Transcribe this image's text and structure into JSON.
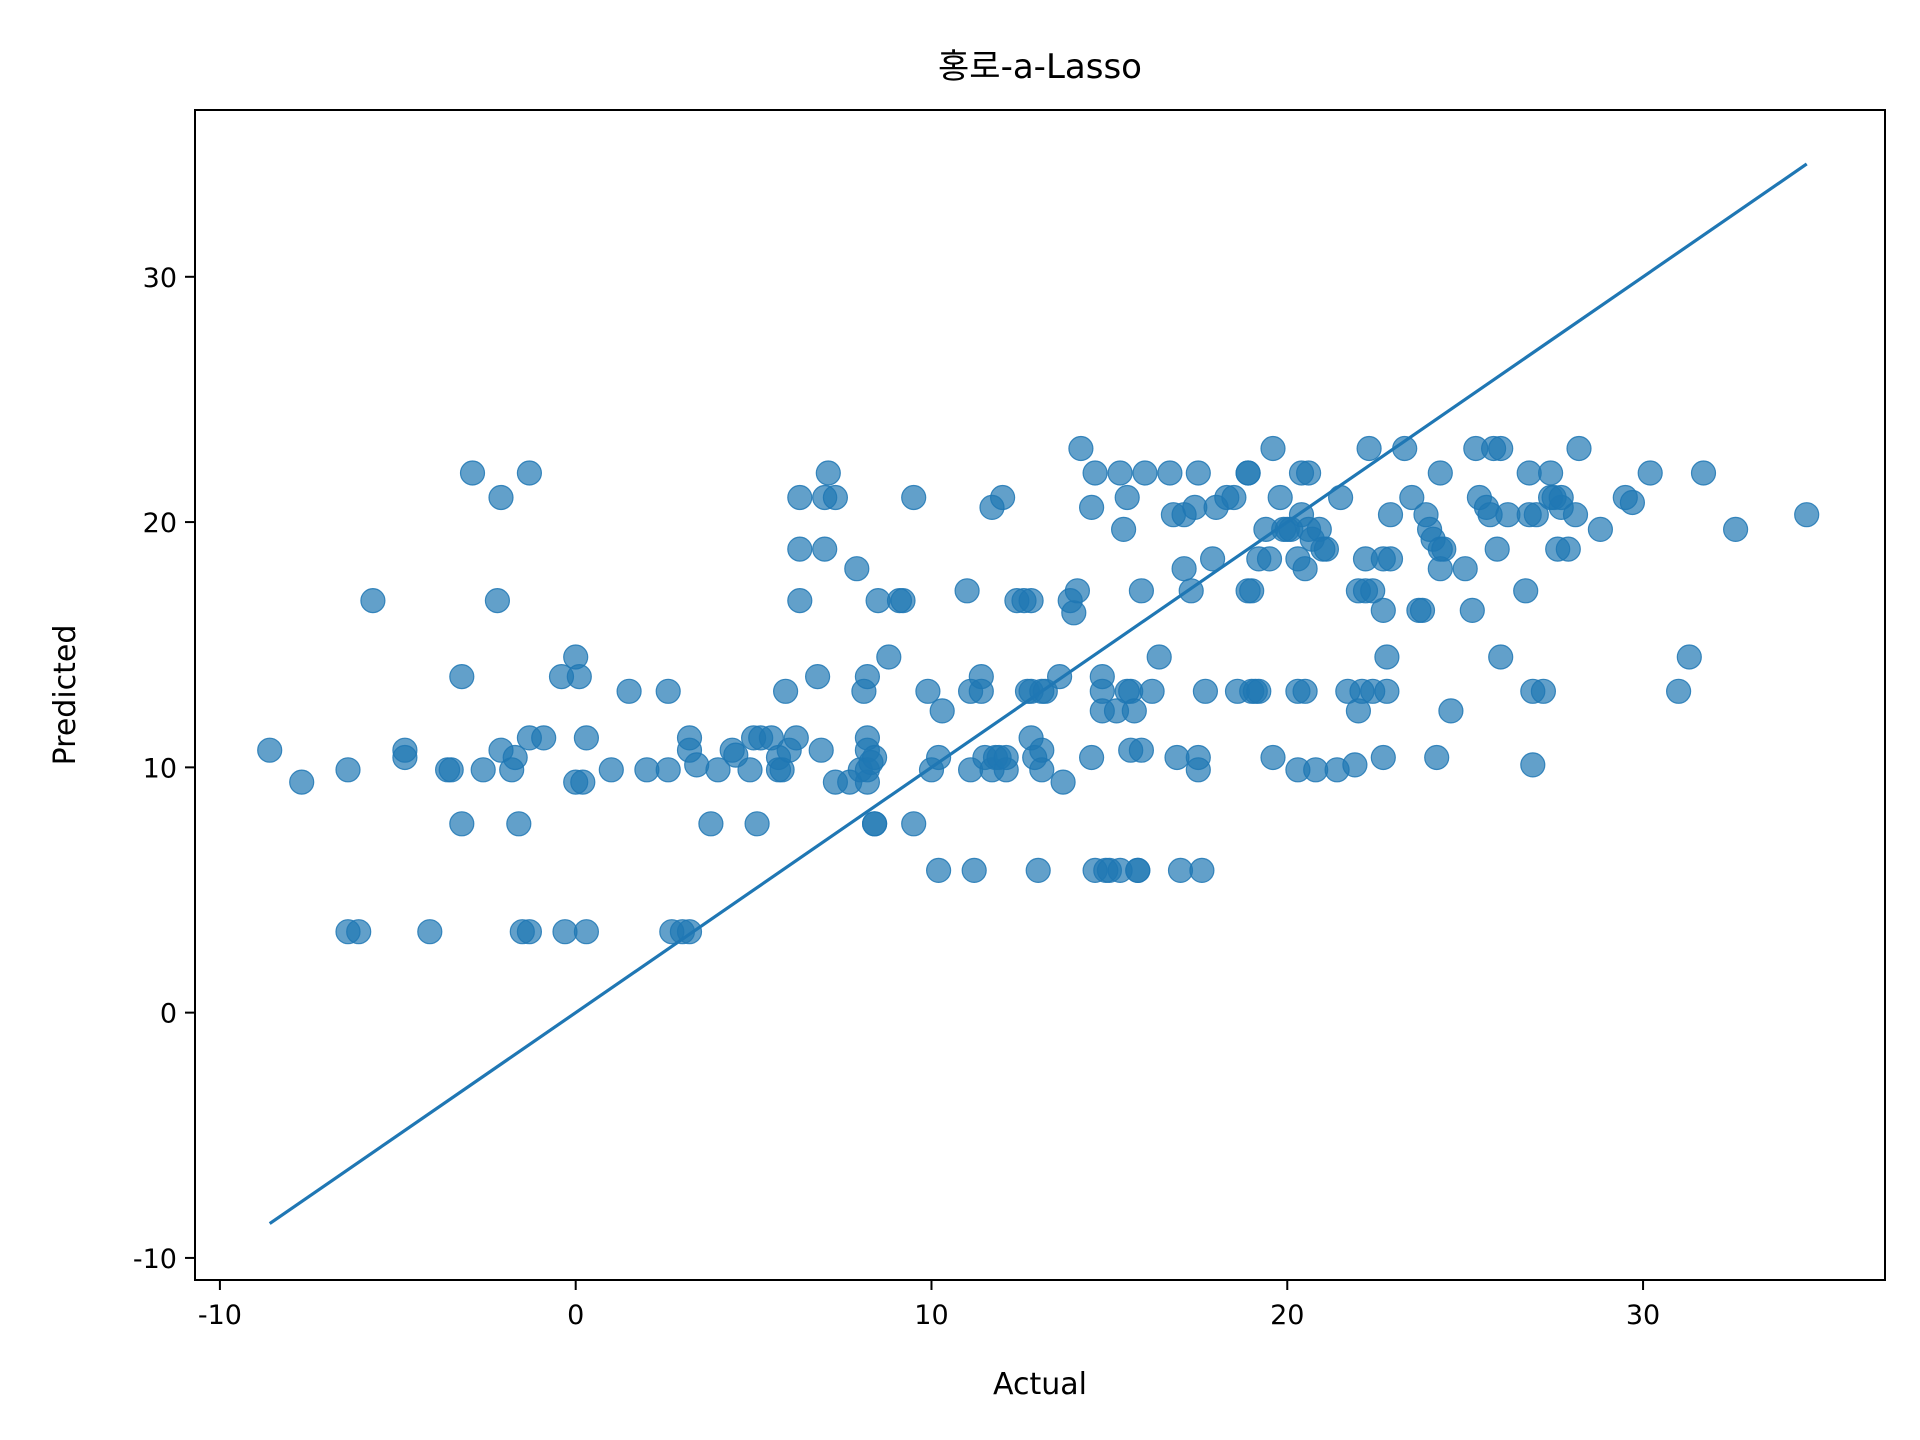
{
  "chart_data": {
    "type": "scatter",
    "title": "홍로-a-Lasso",
    "xlabel": "Actual",
    "ylabel": "Predicted",
    "xlim": [
      -10.7,
      36.8
    ],
    "ylim": [
      -10.9,
      36.8
    ],
    "xticks": [
      -10,
      0,
      10,
      20,
      30
    ],
    "yticks": [
      -10,
      0,
      10,
      20,
      30
    ],
    "xtick_labels": [
      "-10",
      "0",
      "10",
      "20",
      "30"
    ],
    "ytick_labels": [
      "-10",
      "0",
      "10",
      "20",
      "30"
    ],
    "grid": false,
    "legend": "none",
    "point_color": "#1f77b4",
    "point_alpha": 0.7,
    "line_color": "#1f77b4",
    "reference_line": {
      "x": [
        -8.6,
        34.6
      ],
      "y": [
        -8.6,
        34.6
      ]
    },
    "points": [
      [
        -8.6,
        10.7
      ],
      [
        -7.7,
        9.4
      ],
      [
        -6.4,
        9.9
      ],
      [
        -6.4,
        3.3
      ],
      [
        -6.1,
        3.3
      ],
      [
        -5.7,
        16.8
      ],
      [
        -4.8,
        10.7
      ],
      [
        -4.8,
        10.4
      ],
      [
        -4.1,
        3.3
      ],
      [
        -3.6,
        9.9
      ],
      [
        -3.5,
        9.9
      ],
      [
        -3.2,
        7.7
      ],
      [
        -3.2,
        13.7
      ],
      [
        -2.9,
        22.0
      ],
      [
        -2.6,
        9.9
      ],
      [
        -2.2,
        16.8
      ],
      [
        -2.1,
        21.0
      ],
      [
        -2.1,
        10.7
      ],
      [
        -1.8,
        9.9
      ],
      [
        -1.7,
        10.4
      ],
      [
        -1.6,
        7.7
      ],
      [
        -1.5,
        3.3
      ],
      [
        -1.3,
        3.3
      ],
      [
        -1.3,
        11.2
      ],
      [
        -1.3,
        22.0
      ],
      [
        -0.9,
        11.2
      ],
      [
        -0.4,
        13.7
      ],
      [
        -0.3,
        3.3
      ],
      [
        0.0,
        14.5
      ],
      [
        0.0,
        9.4
      ],
      [
        0.1,
        13.7
      ],
      [
        0.2,
        9.4
      ],
      [
        0.3,
        3.3
      ],
      [
        0.3,
        11.2
      ],
      [
        1.0,
        9.9
      ],
      [
        1.5,
        13.1
      ],
      [
        2.0,
        9.9
      ],
      [
        2.6,
        9.9
      ],
      [
        2.6,
        13.1
      ],
      [
        2.7,
        3.3
      ],
      [
        3.0,
        3.3
      ],
      [
        3.2,
        3.3
      ],
      [
        3.2,
        11.2
      ],
      [
        3.2,
        10.7
      ],
      [
        3.4,
        10.1
      ],
      [
        3.8,
        7.7
      ],
      [
        4.0,
        9.9
      ],
      [
        4.4,
        10.7
      ],
      [
        4.5,
        10.5
      ],
      [
        4.9,
        9.9
      ],
      [
        5.0,
        11.2
      ],
      [
        5.1,
        7.7
      ],
      [
        5.2,
        11.2
      ],
      [
        5.5,
        11.2
      ],
      [
        5.7,
        10.4
      ],
      [
        5.7,
        9.9
      ],
      [
        5.8,
        9.9
      ],
      [
        5.9,
        13.1
      ],
      [
        6.0,
        10.7
      ],
      [
        6.2,
        11.2
      ],
      [
        6.3,
        16.8
      ],
      [
        6.3,
        18.9
      ],
      [
        6.3,
        21.0
      ],
      [
        6.8,
        13.7
      ],
      [
        6.9,
        10.7
      ],
      [
        7.0,
        18.9
      ],
      [
        7.0,
        21.0
      ],
      [
        7.1,
        22.0
      ],
      [
        7.3,
        21.0
      ],
      [
        7.3,
        9.4
      ],
      [
        7.7,
        9.4
      ],
      [
        7.9,
        18.1
      ],
      [
        8.0,
        9.9
      ],
      [
        8.1,
        13.1
      ],
      [
        8.2,
        13.7
      ],
      [
        8.2,
        11.2
      ],
      [
        8.2,
        10.7
      ],
      [
        8.2,
        9.4
      ],
      [
        8.2,
        9.9
      ],
      [
        8.3,
        10.2
      ],
      [
        8.4,
        7.7
      ],
      [
        8.4,
        10.4
      ],
      [
        8.4,
        7.7
      ],
      [
        8.5,
        16.8
      ],
      [
        8.8,
        14.5
      ],
      [
        9.1,
        16.8
      ],
      [
        9.2,
        16.8
      ],
      [
        9.5,
        21.0
      ],
      [
        9.5,
        7.7
      ],
      [
        9.9,
        13.1
      ],
      [
        10.0,
        9.9
      ],
      [
        10.2,
        10.4
      ],
      [
        10.2,
        5.8
      ],
      [
        10.3,
        12.3
      ],
      [
        11.0,
        17.2
      ],
      [
        11.1,
        13.1
      ],
      [
        11.1,
        9.9
      ],
      [
        11.2,
        5.8
      ],
      [
        11.4,
        13.7
      ],
      [
        11.4,
        13.1
      ],
      [
        11.5,
        10.4
      ],
      [
        11.7,
        20.6
      ],
      [
        11.7,
        9.9
      ],
      [
        11.8,
        10.4
      ],
      [
        11.9,
        10.4
      ],
      [
        12.0,
        21.0
      ],
      [
        12.1,
        9.9
      ],
      [
        12.1,
        10.4
      ],
      [
        12.4,
        16.8
      ],
      [
        12.6,
        16.8
      ],
      [
        12.7,
        13.1
      ],
      [
        12.8,
        16.8
      ],
      [
        12.8,
        11.2
      ],
      [
        12.8,
        13.1
      ],
      [
        12.9,
        10.4
      ],
      [
        13.0,
        5.8
      ],
      [
        13.1,
        13.1
      ],
      [
        13.1,
        9.9
      ],
      [
        13.1,
        10.7
      ],
      [
        13.2,
        13.1
      ],
      [
        13.6,
        13.7
      ],
      [
        13.7,
        9.4
      ],
      [
        13.9,
        16.8
      ],
      [
        14.0,
        16.3
      ],
      [
        14.1,
        17.2
      ],
      [
        14.2,
        23.0
      ],
      [
        14.5,
        20.6
      ],
      [
        14.5,
        10.4
      ],
      [
        14.6,
        22.0
      ],
      [
        14.6,
        5.8
      ],
      [
        14.8,
        13.7
      ],
      [
        14.8,
        13.1
      ],
      [
        14.8,
        12.3
      ],
      [
        14.9,
        5.8
      ],
      [
        15.0,
        5.8
      ],
      [
        15.2,
        12.3
      ],
      [
        15.3,
        5.8
      ],
      [
        15.3,
        22.0
      ],
      [
        15.4,
        19.7
      ],
      [
        15.5,
        13.1
      ],
      [
        15.5,
        21.0
      ],
      [
        15.6,
        13.1
      ],
      [
        15.6,
        10.7
      ],
      [
        15.7,
        12.3
      ],
      [
        15.8,
        5.8
      ],
      [
        15.8,
        5.8
      ],
      [
        15.9,
        10.7
      ],
      [
        15.9,
        17.2
      ],
      [
        16.0,
        22.0
      ],
      [
        16.2,
        13.1
      ],
      [
        16.4,
        14.5
      ],
      [
        16.7,
        22.0
      ],
      [
        16.8,
        20.3
      ],
      [
        16.9,
        10.4
      ],
      [
        17.0,
        5.8
      ],
      [
        17.1,
        18.1
      ],
      [
        17.1,
        20.3
      ],
      [
        17.3,
        17.2
      ],
      [
        17.4,
        20.6
      ],
      [
        17.5,
        22.0
      ],
      [
        17.5,
        10.4
      ],
      [
        17.5,
        9.9
      ],
      [
        17.6,
        5.8
      ],
      [
        17.7,
        13.1
      ],
      [
        17.9,
        18.5
      ],
      [
        18.0,
        20.6
      ],
      [
        18.3,
        21.0
      ],
      [
        18.5,
        21.0
      ],
      [
        18.6,
        13.1
      ],
      [
        18.9,
        22.0
      ],
      [
        18.9,
        22.0
      ],
      [
        18.9,
        17.2
      ],
      [
        19.0,
        13.1
      ],
      [
        19.0,
        17.2
      ],
      [
        19.1,
        13.1
      ],
      [
        19.2,
        13.1
      ],
      [
        19.2,
        18.5
      ],
      [
        19.4,
        19.7
      ],
      [
        19.5,
        18.5
      ],
      [
        19.6,
        10.4
      ],
      [
        19.6,
        23.0
      ],
      [
        19.8,
        21.0
      ],
      [
        19.9,
        19.7
      ],
      [
        20.0,
        19.7
      ],
      [
        20.1,
        19.7
      ],
      [
        20.3,
        18.5
      ],
      [
        20.3,
        9.9
      ],
      [
        20.3,
        13.1
      ],
      [
        20.4,
        20.3
      ],
      [
        20.4,
        22.0
      ],
      [
        20.5,
        13.1
      ],
      [
        20.5,
        18.1
      ],
      [
        20.6,
        19.7
      ],
      [
        20.6,
        22.0
      ],
      [
        20.7,
        19.3
      ],
      [
        20.8,
        9.9
      ],
      [
        20.9,
        19.7
      ],
      [
        21.0,
        18.9
      ],
      [
        21.1,
        18.9
      ],
      [
        21.4,
        9.9
      ],
      [
        21.5,
        21.0
      ],
      [
        21.7,
        13.1
      ],
      [
        21.9,
        10.1
      ],
      [
        22.0,
        17.2
      ],
      [
        22.0,
        12.3
      ],
      [
        22.1,
        13.1
      ],
      [
        22.2,
        18.5
      ],
      [
        22.2,
        17.2
      ],
      [
        22.3,
        23.0
      ],
      [
        22.4,
        13.1
      ],
      [
        22.4,
        17.2
      ],
      [
        22.7,
        18.5
      ],
      [
        22.7,
        16.4
      ],
      [
        22.7,
        10.4
      ],
      [
        22.8,
        14.5
      ],
      [
        22.8,
        13.1
      ],
      [
        22.9,
        20.3
      ],
      [
        22.9,
        18.5
      ],
      [
        23.3,
        23.0
      ],
      [
        23.5,
        21.0
      ],
      [
        23.7,
        16.4
      ],
      [
        23.8,
        16.4
      ],
      [
        23.9,
        20.3
      ],
      [
        24.0,
        19.7
      ],
      [
        24.1,
        19.3
      ],
      [
        24.2,
        10.4
      ],
      [
        24.3,
        18.1
      ],
      [
        24.3,
        18.9
      ],
      [
        24.3,
        22.0
      ],
      [
        24.4,
        18.9
      ],
      [
        24.6,
        12.3
      ],
      [
        25.0,
        18.1
      ],
      [
        25.2,
        16.4
      ],
      [
        25.3,
        23.0
      ],
      [
        25.4,
        21.0
      ],
      [
        25.6,
        20.6
      ],
      [
        25.7,
        20.3
      ],
      [
        25.8,
        23.0
      ],
      [
        25.9,
        18.9
      ],
      [
        26.0,
        14.5
      ],
      [
        26.0,
        23.0
      ],
      [
        26.2,
        20.3
      ],
      [
        26.7,
        17.2
      ],
      [
        26.8,
        22.0
      ],
      [
        26.8,
        20.3
      ],
      [
        26.9,
        10.1
      ],
      [
        26.9,
        13.1
      ],
      [
        27.0,
        20.3
      ],
      [
        27.2,
        13.1
      ],
      [
        27.4,
        21.0
      ],
      [
        27.4,
        22.0
      ],
      [
        27.5,
        21.0
      ],
      [
        27.6,
        18.9
      ],
      [
        27.7,
        20.6
      ],
      [
        27.7,
        21.0
      ],
      [
        27.9,
        18.9
      ],
      [
        28.1,
        20.3
      ],
      [
        28.2,
        23.0
      ],
      [
        28.8,
        19.7
      ],
      [
        29.5,
        21.0
      ],
      [
        29.7,
        20.8
      ],
      [
        30.2,
        22.0
      ],
      [
        31.0,
        13.1
      ],
      [
        31.3,
        14.5
      ],
      [
        31.7,
        22.0
      ],
      [
        32.6,
        19.7
      ],
      [
        34.6,
        20.3
      ]
    ]
  }
}
